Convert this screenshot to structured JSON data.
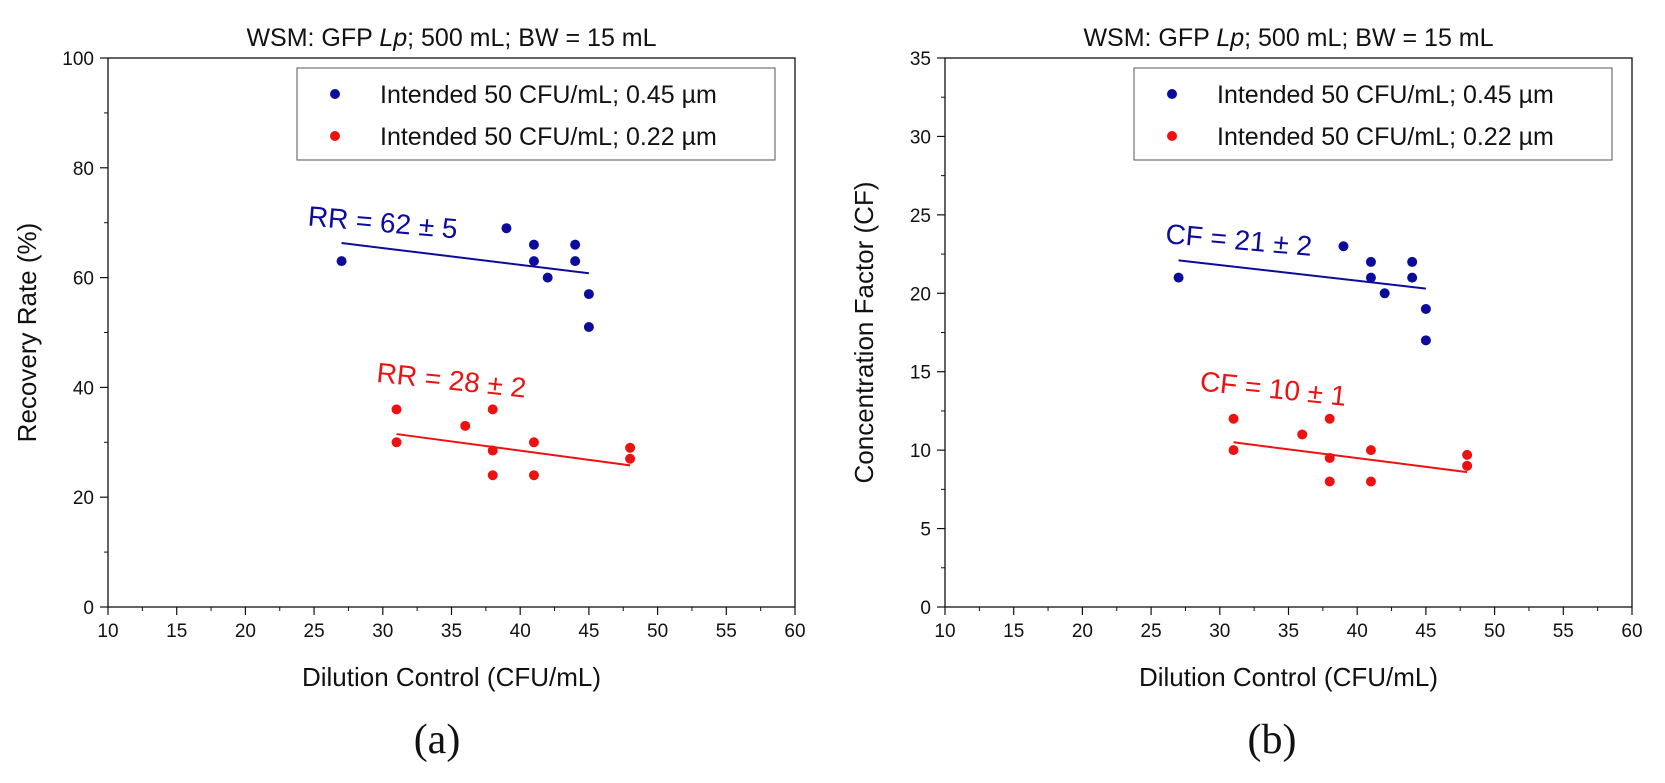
{
  "chart_data": [
    {
      "type": "scatter",
      "panel_label": "(a)",
      "title_prefix": "WSM: GFP ",
      "title_italic": "Lp",
      "title_suffix": "; 500 mL; BW = 15 mL",
      "xlabel": "Dilution Control (CFU/mL)",
      "ylabel": "Recovery Rate (%)",
      "xlim": [
        10,
        60
      ],
      "ylim": [
        0,
        100
      ],
      "xticks": [
        10,
        15,
        20,
        25,
        30,
        35,
        40,
        45,
        50,
        55,
        60
      ],
      "yticks": [
        0,
        20,
        40,
        60,
        80,
        100
      ],
      "legend_position": "top-right",
      "series": [
        {
          "name": "Intended 50 CFU/mL; 0.45 µm",
          "color": "#0c0c9c",
          "points": [
            [
              27,
              63
            ],
            [
              39,
              69
            ],
            [
              41,
              66
            ],
            [
              41,
              63
            ],
            [
              42,
              60
            ],
            [
              44,
              66
            ],
            [
              44,
              63
            ],
            [
              45,
              57
            ],
            [
              45,
              51
            ]
          ],
          "fit": [
            [
              27,
              66.3
            ],
            [
              45,
              60.8
            ]
          ],
          "annotation": {
            "text": "RR = 62 ± 5",
            "x": 24.5,
            "y": 69.5,
            "rotate": 5
          }
        },
        {
          "name": "Intended 50 CFU/mL; 0.22 µm",
          "color": "#ee1111",
          "points": [
            [
              31,
              36
            ],
            [
              31,
              30
            ],
            [
              36,
              33
            ],
            [
              38,
              36
            ],
            [
              38,
              28.5
            ],
            [
              38,
              24
            ],
            [
              41,
              30
            ],
            [
              41,
              24
            ],
            [
              48,
              29
            ],
            [
              48,
              27
            ]
          ],
          "fit": [
            [
              31,
              31.5
            ],
            [
              48,
              25.8
            ]
          ],
          "annotation": {
            "text": "RR = 28 ± 2",
            "x": 29.5,
            "y": 41,
            "rotate": 6
          }
        }
      ]
    },
    {
      "type": "scatter",
      "panel_label": "(b)",
      "title_prefix": "WSM: GFP ",
      "title_italic": "Lp",
      "title_suffix": "; 500 mL; BW = 15 mL",
      "xlabel": "Dilution Control (CFU/mL)",
      "ylabel": "Concentration Factor (CF)",
      "xlim": [
        10,
        60
      ],
      "ylim": [
        0,
        35
      ],
      "xticks": [
        10,
        15,
        20,
        25,
        30,
        35,
        40,
        45,
        50,
        55,
        60
      ],
      "yticks": [
        0,
        5,
        10,
        15,
        20,
        25,
        30,
        35
      ],
      "legend_position": "top-right",
      "series": [
        {
          "name": "Intended 50 CFU/mL; 0.45 µm",
          "color": "#0c0c9c",
          "points": [
            [
              27,
              21
            ],
            [
              39,
              23
            ],
            [
              41,
              22
            ],
            [
              41,
              21
            ],
            [
              42,
              20
            ],
            [
              44,
              22
            ],
            [
              44,
              21
            ],
            [
              45,
              19
            ],
            [
              45,
              17
            ]
          ],
          "fit": [
            [
              27,
              22.1
            ],
            [
              45,
              20.3
            ]
          ],
          "annotation": {
            "text": "CF = 21 ± 2",
            "x": 26,
            "y": 23.2,
            "rotate": 5
          }
        },
        {
          "name": "Intended 50 CFU/mL; 0.22 µm",
          "color": "#ee1111",
          "points": [
            [
              31,
              12
            ],
            [
              31,
              10
            ],
            [
              36,
              11
            ],
            [
              38,
              12
            ],
            [
              38,
              9.5
            ],
            [
              38,
              8
            ],
            [
              41,
              10
            ],
            [
              41,
              8
            ],
            [
              48,
              9.7
            ],
            [
              48,
              9
            ]
          ],
          "fit": [
            [
              31,
              10.5
            ],
            [
              48,
              8.6
            ]
          ],
          "annotation": {
            "text": "CF = 10 ± 1",
            "x": 28.5,
            "y": 13.8,
            "rotate": 6
          }
        }
      ]
    }
  ]
}
